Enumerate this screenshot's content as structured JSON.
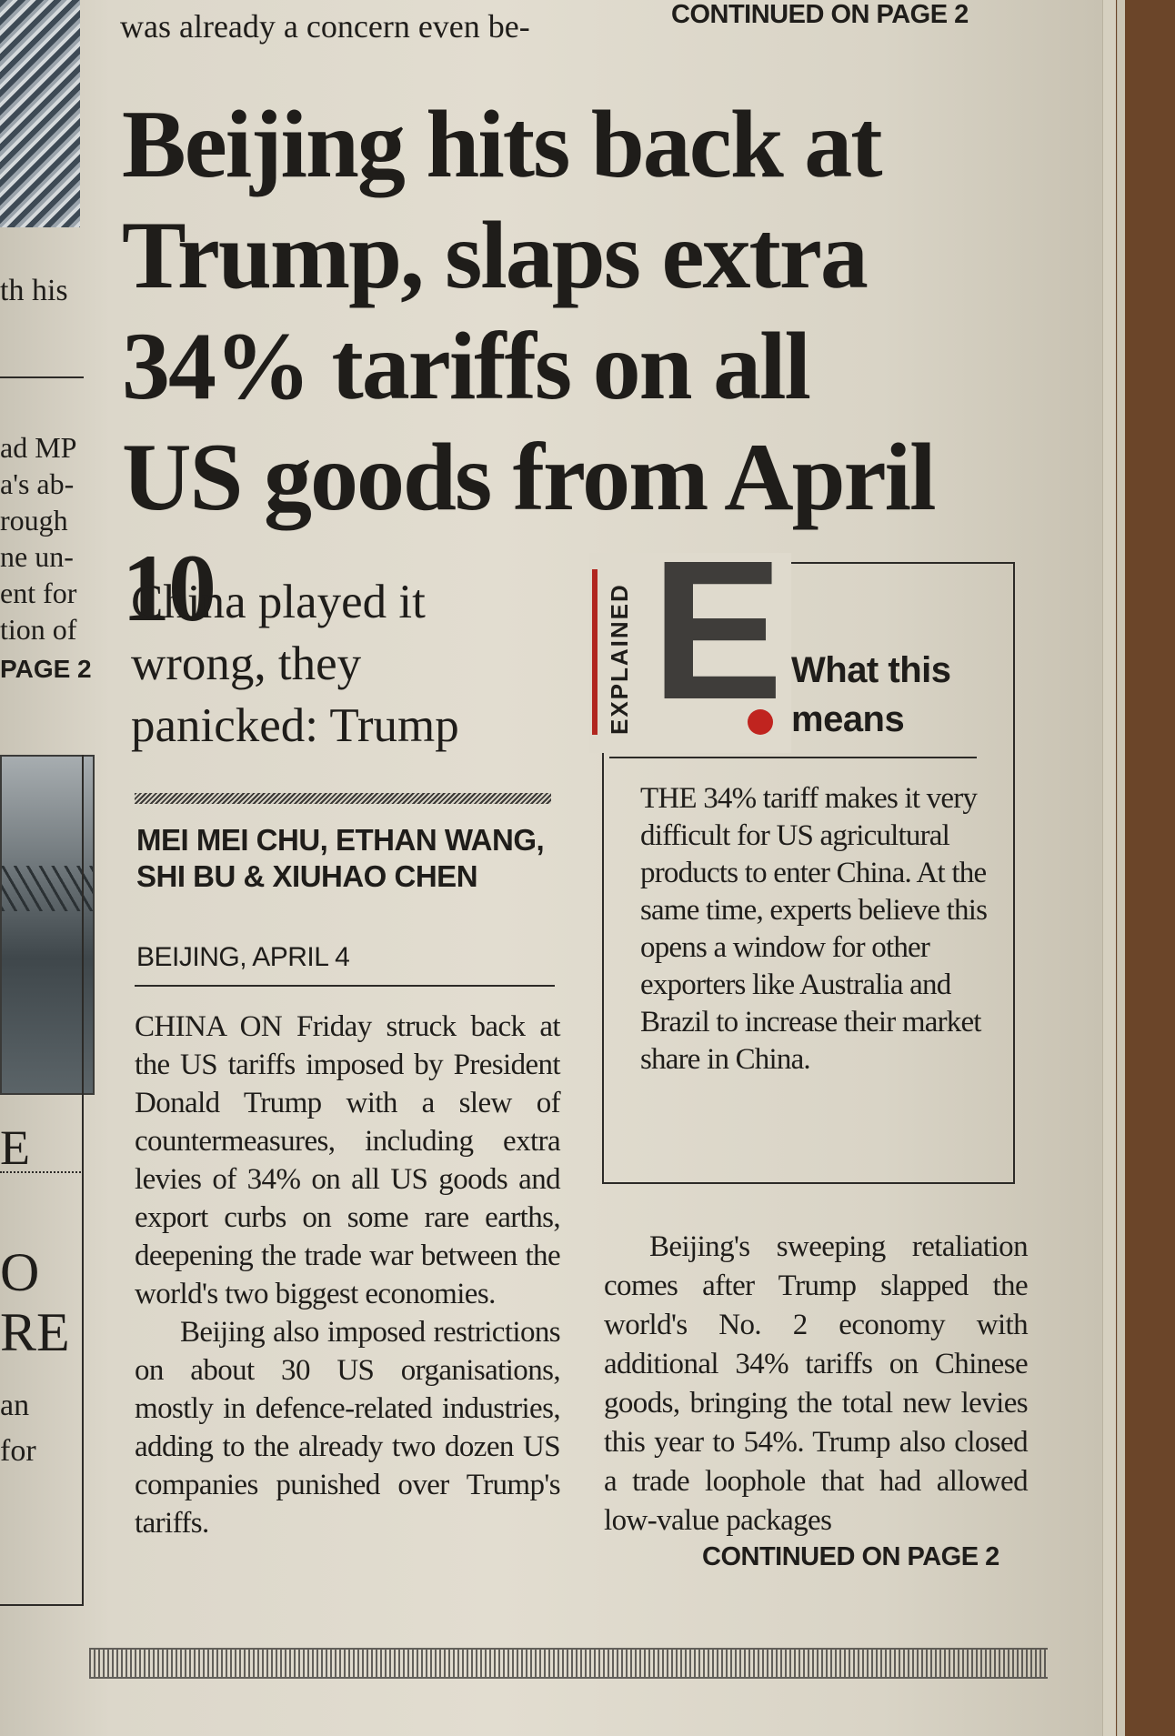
{
  "previous_story": {
    "last_line": "was already a concern even be-",
    "continued": "CONTINUED ON PAGE 2"
  },
  "left_column_fragments": [
    "th his",
    "ad MP",
    "a's ab-",
    "rough",
    "ne un-",
    "ent for",
    "tion of",
    "PAGE 2",
    "E",
    "O",
    "RE",
    "an",
    "for"
  ],
  "article": {
    "headline": "Beijing hits back at Trump, slaps extra 34% tariffs on all US goods from April 10",
    "subhead": "China played it wrong, they panicked: Trump",
    "byline": "MEI MEI CHU, ETHAN WANG, SHI BU & XIUHAO CHEN",
    "dateline": "BEIJING, APRIL 4",
    "body_paragraphs": [
      "CHINA ON Friday struck back at the US tariffs imposed by President Donald Trump with a slew of countermeasures, including extra levies of 34% on all US goods and export curbs on some rare earths, deepening the trade war between the world's two biggest economies.",
      "Beijing also imposed restrictions on about 30 US organisations, mostly in defence-related industries, adding to the already two dozen US companies punished over Trump's tariffs."
    ],
    "right_column_paragraph": "Beijing's sweeping retaliation comes after Trump slapped the world's No. 2 economy with additional 34% tariffs on Chinese goods, bringing the total new levies this year to 54%. Trump also closed a trade loophole that had allowed low-value packages",
    "continued": "CONTINUED ON PAGE 2"
  },
  "explained": {
    "vertical_label": "EXPLAINED",
    "logo_letter": "E",
    "title": "What this means",
    "text": "THE 34% tariff makes it very difficult for US agricultural products to enter China. At the same time, experts believe this opens a window for other exporters like Australia and Brazil to increase their market share in China.",
    "accent_color": "#c0241f"
  },
  "colors": {
    "paper": "#e2ddd0",
    "ink": "#1f1d1a",
    "table_wood": "#6b4529"
  }
}
